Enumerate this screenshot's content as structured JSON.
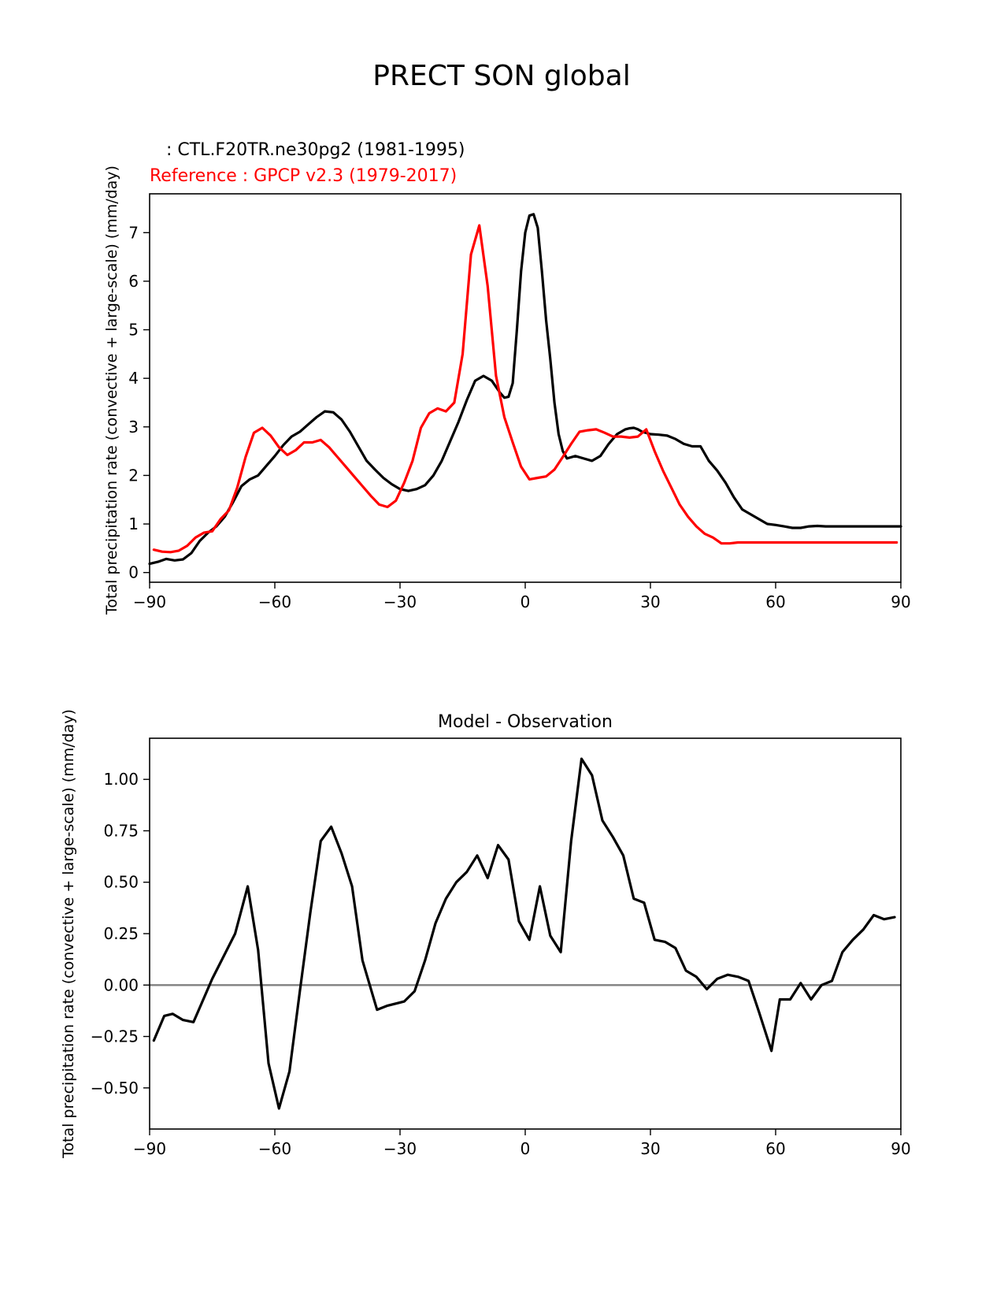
{
  "figure_title": "PRECT SON global",
  "chart_data": [
    {
      "type": "line",
      "legend": {
        "model_label": "   : CTL.F20TR.ne30pg2 (1981-1995)",
        "reference_label": "Reference : GPCP v2.3 (1979-2017)",
        "placement": "top-left"
      },
      "xlabel": "",
      "ylabel": "Total precipitation rate (convective + large-scale) (mm/day)",
      "xlim": [
        -90,
        90
      ],
      "ylim": [
        -0.2,
        7.8
      ],
      "xticks": [
        -90,
        -60,
        -30,
        0,
        30,
        60,
        90
      ],
      "xtick_labels": [
        "−90",
        "−60",
        "−30",
        "0",
        "30",
        "60",
        "90"
      ],
      "yticks": [
        0,
        1,
        2,
        3,
        4,
        5,
        6,
        7
      ],
      "ytick_labels": [
        "0",
        "1",
        "2",
        "3",
        "4",
        "5",
        "6",
        "7"
      ],
      "series": [
        {
          "name": "CTL.F20TR.ne30pg2 (1981-1995)",
          "color": "#000000",
          "x": [
            -90,
            -88,
            -86,
            -84,
            -82,
            -80,
            -78,
            -76,
            -74,
            -72,
            -70,
            -68,
            -66,
            -64,
            -62,
            -60,
            -58,
            -56,
            -54,
            -52,
            -50,
            -48,
            -46,
            -44,
            -42,
            -40,
            -38,
            -36,
            -34,
            -32,
            -30,
            -28,
            -26,
            -24,
            -22,
            -20,
            -18,
            -16,
            -14,
            -12,
            -10,
            -8,
            -6,
            -5,
            -4,
            -3,
            -2,
            -1,
            0,
            1,
            2,
            3,
            4,
            5,
            6,
            7,
            8,
            9,
            10,
            12,
            14,
            16,
            18,
            20,
            22,
            24,
            25,
            26,
            27,
            28,
            30,
            32,
            34,
            36,
            38,
            40,
            42,
            44,
            46,
            48,
            50,
            52,
            54,
            56,
            58,
            60,
            62,
            64,
            66,
            68,
            70,
            72,
            74,
            76,
            78,
            80,
            82,
            84,
            86,
            88,
            90
          ],
          "y": [
            0.18,
            0.22,
            0.28,
            0.25,
            0.27,
            0.4,
            0.65,
            0.82,
            0.95,
            1.15,
            1.45,
            1.78,
            1.92,
            2.0,
            2.2,
            2.4,
            2.62,
            2.8,
            2.9,
            3.05,
            3.2,
            3.32,
            3.3,
            3.15,
            2.9,
            2.6,
            2.3,
            2.12,
            1.95,
            1.82,
            1.72,
            1.68,
            1.72,
            1.8,
            2.0,
            2.3,
            2.7,
            3.1,
            3.55,
            3.95,
            4.05,
            3.95,
            3.7,
            3.6,
            3.62,
            3.9,
            5.0,
            6.2,
            7.0,
            7.35,
            7.38,
            7.1,
            6.2,
            5.2,
            4.4,
            3.5,
            2.85,
            2.5,
            2.35,
            2.4,
            2.35,
            2.3,
            2.4,
            2.65,
            2.85,
            2.95,
            2.97,
            2.98,
            2.95,
            2.9,
            2.85,
            2.84,
            2.82,
            2.75,
            2.65,
            2.6,
            2.6,
            2.3,
            2.1,
            1.85,
            1.55,
            1.3,
            1.2,
            1.1,
            1.0,
            0.98,
            0.95,
            0.92,
            0.92,
            0.95,
            0.96,
            0.95,
            0.95,
            0.95,
            0.95,
            0.95,
            0.95,
            0.95,
            0.95,
            0.95,
            0.95
          ]
        },
        {
          "name": "Reference : GPCP v2.3 (1979-2017)",
          "color": "#ff0000",
          "x": [
            -89,
            -87,
            -85,
            -83,
            -81,
            -79,
            -77,
            -75,
            -73,
            -71,
            -69,
            -67,
            -65,
            -63,
            -61,
            -59,
            -57,
            -55,
            -53,
            -51,
            -49,
            -47,
            -45,
            -43,
            -41,
            -39,
            -37,
            -35,
            -33,
            -31,
            -29,
            -27,
            -25,
            -23,
            -21,
            -19,
            -17,
            -15,
            -13,
            -11,
            -9,
            -7,
            -5,
            -3,
            -1,
            1,
            3,
            5,
            7,
            9,
            11,
            13,
            15,
            17,
            19,
            21,
            23,
            25,
            27,
            29,
            31,
            33,
            35,
            37,
            39,
            41,
            43,
            45,
            47,
            49,
            51,
            53,
            55,
            57,
            59,
            61,
            63,
            65,
            67,
            69,
            71,
            73,
            75,
            77,
            79,
            81,
            83,
            85,
            87,
            89
          ],
          "y": [
            0.47,
            0.43,
            0.42,
            0.45,
            0.55,
            0.72,
            0.82,
            0.85,
            1.1,
            1.28,
            1.75,
            2.38,
            2.88,
            2.98,
            2.82,
            2.58,
            2.42,
            2.52,
            2.68,
            2.68,
            2.73,
            2.58,
            2.38,
            2.18,
            1.98,
            1.78,
            1.58,
            1.4,
            1.35,
            1.48,
            1.85,
            2.3,
            2.98,
            3.28,
            3.38,
            3.32,
            3.5,
            4.5,
            6.55,
            7.15,
            5.9,
            4.05,
            3.2,
            2.68,
            2.18,
            1.92,
            1.95,
            1.98,
            2.12,
            2.38,
            2.65,
            2.9,
            2.93,
            2.95,
            2.88,
            2.8,
            2.8,
            2.78,
            2.8,
            2.95,
            2.5,
            2.1,
            1.75,
            1.4,
            1.15,
            0.95,
            0.8,
            0.72,
            0.6,
            0.6,
            0.62,
            0.62,
            0.62,
            0.62,
            0.62,
            0.62,
            0.62,
            0.62,
            0.62,
            0.62,
            0.62,
            0.62,
            0.62,
            0.62,
            0.62,
            0.62,
            0.62,
            0.62,
            0.62,
            0.62
          ]
        }
      ]
    },
    {
      "type": "line",
      "title": "Model - Observation",
      "xlabel": "",
      "ylabel": "Total precipitation rate (convective + large-scale) (mm/day)",
      "xlim": [
        -90,
        90
      ],
      "ylim": [
        -0.7,
        1.2
      ],
      "xticks": [
        -90,
        -60,
        -30,
        0,
        30,
        60,
        90
      ],
      "xtick_labels": [
        "−90",
        "−60",
        "−30",
        "0",
        "30",
        "60",
        "90"
      ],
      "yticks": [
        -0.5,
        -0.25,
        0.0,
        0.25,
        0.5,
        0.75,
        1.0
      ],
      "ytick_labels": [
        "−0.50",
        "−0.25",
        "0.00",
        "0.25",
        "0.50",
        "0.75",
        "1.00"
      ],
      "zero_line": 0,
      "series": [
        {
          "name": "Model - Observation",
          "color": "#000000",
          "x": [
            -89,
            -86.5,
            -84.5,
            -82,
            -79.5,
            -75,
            -69.5,
            -66.5,
            -64,
            -61.5,
            -59,
            -56.5,
            -54,
            -51.5,
            -49,
            -46.5,
            -44,
            -41.5,
            -39,
            -35.5,
            -33,
            -29,
            -26.5,
            -24,
            -21.5,
            -19,
            -16.5,
            -14,
            -11.5,
            -9,
            -6.5,
            -4,
            -1.5,
            1,
            3.5,
            6,
            8.5,
            11,
            13.5,
            16,
            18.5,
            21,
            23.5,
            26,
            28.5,
            31,
            33.5,
            36,
            38.5,
            41,
            43.5,
            46,
            48.5,
            51,
            53.5,
            56,
            59,
            61,
            63.5,
            66,
            68.5,
            71,
            73.5,
            76,
            78.5,
            81,
            83.5,
            86,
            88.5
          ],
          "y": [
            -0.27,
            -0.15,
            -0.14,
            -0.17,
            -0.18,
            0.03,
            0.25,
            0.48,
            0.17,
            -0.38,
            -0.6,
            -0.42,
            -0.03,
            0.35,
            0.7,
            0.77,
            0.64,
            0.48,
            0.12,
            -0.12,
            -0.1,
            -0.08,
            -0.03,
            0.12,
            0.3,
            0.42,
            0.5,
            0.55,
            0.63,
            0.52,
            0.68,
            0.61,
            0.31,
            0.22,
            0.48,
            0.24,
            0.16,
            0.7,
            1.1,
            1.02,
            0.8,
            0.72,
            0.63,
            0.42,
            0.4,
            0.22,
            0.21,
            0.18,
            0.07,
            0.04,
            -0.02,
            0.03,
            0.05,
            0.04,
            0.02,
            -0.13,
            -0.32,
            -0.07,
            -0.07,
            0.01,
            -0.07,
            0.0,
            0.02,
            0.16,
            0.22,
            0.27,
            0.34,
            0.32,
            0.33
          ]
        }
      ]
    }
  ]
}
